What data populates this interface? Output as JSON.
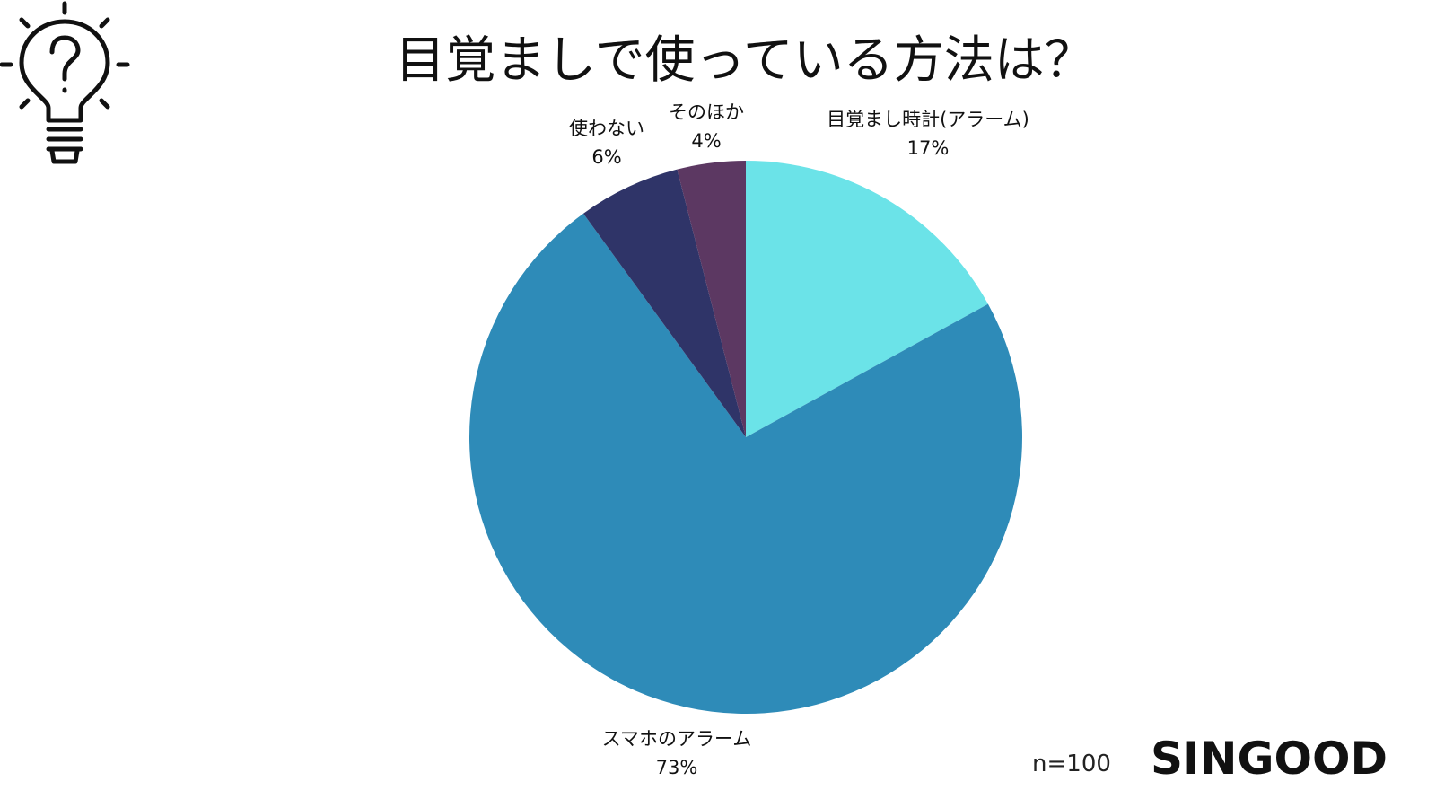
{
  "title": "目覚ましで使っている方法は？",
  "footnote": "n=100",
  "brand": "SINGOOD",
  "icons": {
    "logo": "lightbulb-question-icon"
  },
  "chart_data": {
    "type": "pie",
    "title": "目覚ましで使っている方法は？",
    "start_angle_deg": 0,
    "direction": "clockwise",
    "slices": [
      {
        "label": "目覚まし時計(アラーム)",
        "value_label": "17%",
        "value": 17,
        "color": "#6be3e8"
      },
      {
        "label": "スマホのアラーム",
        "value_label": "73%",
        "value": 73,
        "color": "#2e8bb8"
      },
      {
        "label": "使わない",
        "value_label": "6%",
        "value": 6,
        "color": "#2f3468"
      },
      {
        "label": "そのほか",
        "value_label": "4%",
        "value": 4,
        "color": "#5c3862"
      }
    ]
  }
}
